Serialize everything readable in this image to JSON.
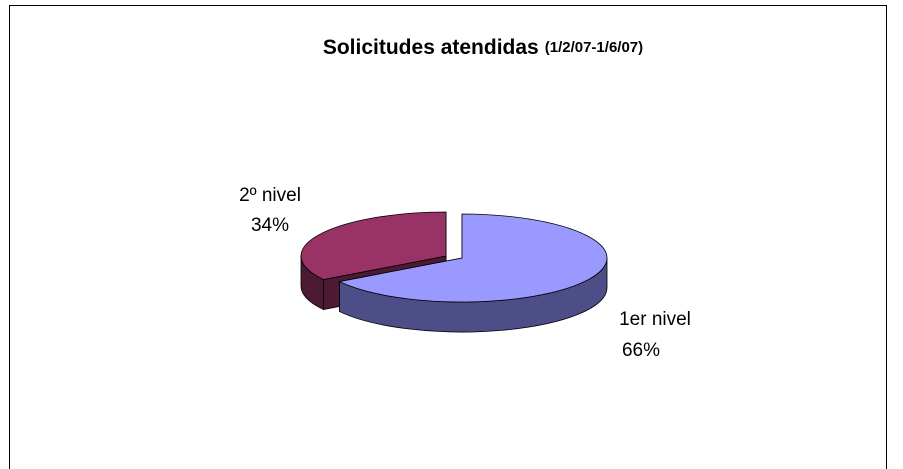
{
  "chart_data": {
    "type": "pie",
    "title": "Solicitudes atendidas",
    "subtitle": "(1/2/07-1/6/07)",
    "categories": [
      "1er nivel",
      "2º nivel"
    ],
    "values": [
      66,
      34
    ],
    "value_labels": [
      "66%",
      "34%"
    ],
    "colors": [
      "#9999ff",
      "#993366"
    ],
    "shade_colors": [
      "#4d4d88",
      "#4d1a33"
    ],
    "three_d": true
  }
}
